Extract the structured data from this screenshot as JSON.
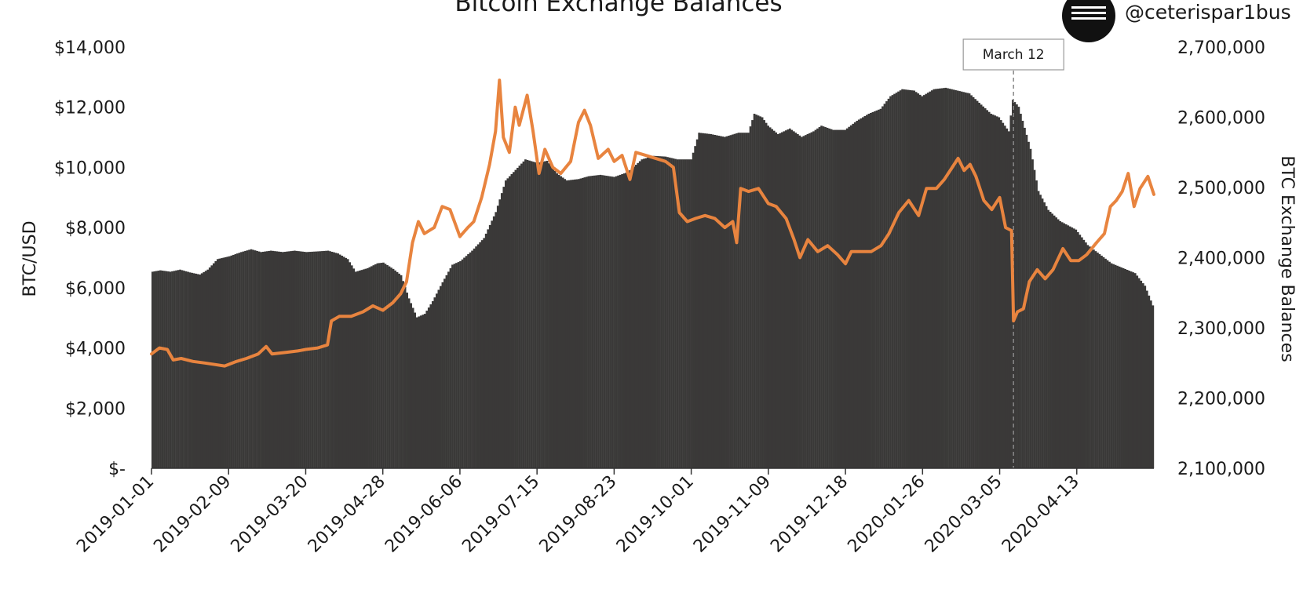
{
  "colors": {
    "bars": "#3a3938",
    "price_line": "#e8843f",
    "marker_line": "#888888",
    "logo": "#111111"
  },
  "header": {
    "title": "Bitcoin Exchange Balances",
    "handle": "@ceterispar1bus",
    "logo_icon": "menu-icon"
  },
  "chart_data": {
    "type": "bar",
    "title": "Bitcoin Exchange Balances",
    "grid": false,
    "legend": "none",
    "x_tick_labels": [
      "2019-01-01",
      "2019-02-09",
      "2019-03-20",
      "2019-04-28",
      "2019-06-06",
      "2019-07-15",
      "2019-08-23",
      "2019-10-01",
      "2019-11-09",
      "2019-12-18",
      "2020-01-26",
      "2020-03-05",
      "2020-04-13"
    ],
    "y_left": {
      "label": "BTC/USD",
      "range": [
        0,
        14000
      ],
      "tick_values": [
        0,
        2000,
        4000,
        6000,
        8000,
        10000,
        12000,
        14000
      ],
      "tick_labels": [
        "$-",
        "$2,000",
        "$4,000",
        "$6,000",
        "$8,000",
        "$10,000",
        "$12,000",
        "$14,000"
      ]
    },
    "y_right": {
      "label": "BTC Exchange Balances",
      "range": [
        2100000,
        2700000
      ],
      "tick_values": [
        2100000,
        2200000,
        2300000,
        2400000,
        2500000,
        2600000,
        2700000
      ],
      "tick_labels": [
        "2,100,000",
        "2,200,000",
        "2,300,000",
        "2,400,000",
        "2,500,000",
        "2,600,000",
        "2,700,000"
      ]
    },
    "x_range": [
      "2019-01-01",
      "2020-05-22"
    ],
    "series": [
      {
        "type": "bar",
        "axis": "right",
        "points": [
          [
            "2019-01-01",
            2380000
          ],
          [
            "2019-01-05",
            2382000
          ],
          [
            "2019-01-10",
            2380000
          ],
          [
            "2019-01-15",
            2383000
          ],
          [
            "2019-01-20",
            2379000
          ],
          [
            "2019-01-25",
            2376000
          ],
          [
            "2019-01-29",
            2383000
          ],
          [
            "2019-02-03",
            2398000
          ],
          [
            "2019-02-09",
            2402000
          ],
          [
            "2019-02-15",
            2408000
          ],
          [
            "2019-02-20",
            2412000
          ],
          [
            "2019-02-25",
            2408000
          ],
          [
            "2019-03-02",
            2410000
          ],
          [
            "2019-03-08",
            2408000
          ],
          [
            "2019-03-14",
            2410000
          ],
          [
            "2019-03-20",
            2408000
          ],
          [
            "2019-03-26",
            2409000
          ],
          [
            "2019-03-31",
            2410000
          ],
          [
            "2019-04-05",
            2406000
          ],
          [
            "2019-04-10",
            2398000
          ],
          [
            "2019-04-14",
            2380000
          ],
          [
            "2019-04-20",
            2385000
          ],
          [
            "2019-04-25",
            2392000
          ],
          [
            "2019-04-28",
            2393000
          ],
          [
            "2019-05-03",
            2384000
          ],
          [
            "2019-05-07",
            2375000
          ],
          [
            "2019-05-11",
            2342000
          ],
          [
            "2019-05-15",
            2315000
          ],
          [
            "2019-05-19",
            2320000
          ],
          [
            "2019-05-23",
            2338000
          ],
          [
            "2019-05-28",
            2365000
          ],
          [
            "2019-06-02",
            2390000
          ],
          [
            "2019-06-06",
            2395000
          ],
          [
            "2019-06-12",
            2410000
          ],
          [
            "2019-06-18",
            2428000
          ],
          [
            "2019-06-24",
            2465000
          ],
          [
            "2019-06-29",
            2510000
          ],
          [
            "2019-07-04",
            2525000
          ],
          [
            "2019-07-09",
            2540000
          ],
          [
            "2019-07-15",
            2535000
          ],
          [
            "2019-07-20",
            2538000
          ],
          [
            "2019-07-25",
            2520000
          ],
          [
            "2019-07-30",
            2510000
          ],
          [
            "2019-08-05",
            2512000
          ],
          [
            "2019-08-10",
            2516000
          ],
          [
            "2019-08-16",
            2518000
          ],
          [
            "2019-08-23",
            2515000
          ],
          [
            "2019-08-30",
            2522000
          ],
          [
            "2019-09-06",
            2540000
          ],
          [
            "2019-09-12",
            2545000
          ],
          [
            "2019-09-18",
            2544000
          ],
          [
            "2019-09-24",
            2540000
          ],
          [
            "2019-10-01",
            2540000
          ],
          [
            "2019-10-05",
            2578000
          ],
          [
            "2019-10-11",
            2576000
          ],
          [
            "2019-10-18",
            2572000
          ],
          [
            "2019-10-25",
            2578000
          ],
          [
            "2019-10-30",
            2578000
          ],
          [
            "2019-11-02",
            2605000
          ],
          [
            "2019-11-06",
            2600000
          ],
          [
            "2019-11-09",
            2588000
          ],
          [
            "2019-11-14",
            2576000
          ],
          [
            "2019-11-20",
            2584000
          ],
          [
            "2019-11-26",
            2572000
          ],
          [
            "2019-12-02",
            2580000
          ],
          [
            "2019-12-06",
            2588000
          ],
          [
            "2019-12-12",
            2582000
          ],
          [
            "2019-12-18",
            2582000
          ],
          [
            "2019-12-24",
            2595000
          ],
          [
            "2019-12-30",
            2605000
          ],
          [
            "2020-01-05",
            2612000
          ],
          [
            "2020-01-10",
            2630000
          ],
          [
            "2020-01-16",
            2640000
          ],
          [
            "2020-01-22",
            2638000
          ],
          [
            "2020-01-26",
            2630000
          ],
          [
            "2020-02-01",
            2640000
          ],
          [
            "2020-02-07",
            2642000
          ],
          [
            "2020-02-13",
            2638000
          ],
          [
            "2020-02-19",
            2634000
          ],
          [
            "2020-02-25",
            2618000
          ],
          [
            "2020-03-01",
            2605000
          ],
          [
            "2020-03-05",
            2600000
          ],
          [
            "2020-03-10",
            2580000
          ],
          [
            "2020-03-12",
            2625000
          ],
          [
            "2020-03-15",
            2615000
          ],
          [
            "2020-03-18",
            2585000
          ],
          [
            "2020-03-21",
            2555000
          ],
          [
            "2020-03-25",
            2495000
          ],
          [
            "2020-03-30",
            2468000
          ],
          [
            "2020-04-05",
            2452000
          ],
          [
            "2020-04-13",
            2440000
          ],
          [
            "2020-04-19",
            2418000
          ],
          [
            "2020-04-25",
            2405000
          ],
          [
            "2020-05-01",
            2392000
          ],
          [
            "2020-05-07",
            2385000
          ],
          [
            "2020-05-13",
            2378000
          ],
          [
            "2020-05-18",
            2360000
          ],
          [
            "2020-05-22",
            2332000
          ]
        ]
      },
      {
        "type": "line",
        "axis": "left",
        "points": [
          [
            "2019-01-01",
            3800
          ],
          [
            "2019-01-05",
            4000
          ],
          [
            "2019-01-09",
            3950
          ],
          [
            "2019-01-12",
            3600
          ],
          [
            "2019-01-16",
            3650
          ],
          [
            "2019-01-22",
            3550
          ],
          [
            "2019-01-28",
            3500
          ],
          [
            "2019-02-02",
            3450
          ],
          [
            "2019-02-07",
            3400
          ],
          [
            "2019-02-13",
            3550
          ],
          [
            "2019-02-18",
            3650
          ],
          [
            "2019-02-24",
            3800
          ],
          [
            "2019-02-28",
            4050
          ],
          [
            "2019-03-03",
            3800
          ],
          [
            "2019-03-10",
            3850
          ],
          [
            "2019-03-16",
            3900
          ],
          [
            "2019-03-20",
            3950
          ],
          [
            "2019-03-26",
            4000
          ],
          [
            "2019-03-31",
            4100
          ],
          [
            "2019-04-02",
            4900
          ],
          [
            "2019-04-06",
            5050
          ],
          [
            "2019-04-12",
            5050
          ],
          [
            "2019-04-18",
            5200
          ],
          [
            "2019-04-23",
            5400
          ],
          [
            "2019-04-28",
            5250
          ],
          [
            "2019-05-03",
            5500
          ],
          [
            "2019-05-07",
            5800
          ],
          [
            "2019-05-10",
            6200
          ],
          [
            "2019-05-13",
            7500
          ],
          [
            "2019-05-16",
            8200
          ],
          [
            "2019-05-19",
            7800
          ],
          [
            "2019-05-24",
            8000
          ],
          [
            "2019-05-28",
            8700
          ],
          [
            "2019-06-01",
            8600
          ],
          [
            "2019-06-06",
            7700
          ],
          [
            "2019-06-10",
            8000
          ],
          [
            "2019-06-13",
            8200
          ],
          [
            "2019-06-17",
            9000
          ],
          [
            "2019-06-21",
            10100
          ],
          [
            "2019-06-24",
            11200
          ],
          [
            "2019-06-26",
            12900
          ],
          [
            "2019-06-28",
            11000
          ],
          [
            "2019-07-01",
            10500
          ],
          [
            "2019-07-04",
            12000
          ],
          [
            "2019-07-06",
            11400
          ],
          [
            "2019-07-10",
            12400
          ],
          [
            "2019-07-13",
            11200
          ],
          [
            "2019-07-16",
            9800
          ],
          [
            "2019-07-19",
            10600
          ],
          [
            "2019-07-23",
            10000
          ],
          [
            "2019-07-27",
            9800
          ],
          [
            "2019-08-01",
            10200
          ],
          [
            "2019-08-05",
            11500
          ],
          [
            "2019-08-08",
            11900
          ],
          [
            "2019-08-11",
            11400
          ],
          [
            "2019-08-15",
            10300
          ],
          [
            "2019-08-20",
            10600
          ],
          [
            "2019-08-23",
            10200
          ],
          [
            "2019-08-27",
            10400
          ],
          [
            "2019-08-31",
            9600
          ],
          [
            "2019-09-03",
            10500
          ],
          [
            "2019-09-08",
            10400
          ],
          [
            "2019-09-13",
            10300
          ],
          [
            "2019-09-18",
            10200
          ],
          [
            "2019-09-22",
            10000
          ],
          [
            "2019-09-25",
            8500
          ],
          [
            "2019-09-29",
            8200
          ],
          [
            "2019-10-03",
            8300
          ],
          [
            "2019-10-08",
            8400
          ],
          [
            "2019-10-13",
            8300
          ],
          [
            "2019-10-18",
            8000
          ],
          [
            "2019-10-22",
            8200
          ],
          [
            "2019-10-24",
            7500
          ],
          [
            "2019-10-26",
            9300
          ],
          [
            "2019-10-30",
            9200
          ],
          [
            "2019-11-04",
            9300
          ],
          [
            "2019-11-09",
            8800
          ],
          [
            "2019-11-13",
            8700
          ],
          [
            "2019-11-18",
            8300
          ],
          [
            "2019-11-22",
            7600
          ],
          [
            "2019-11-25",
            7000
          ],
          [
            "2019-11-29",
            7600
          ],
          [
            "2019-12-04",
            7200
          ],
          [
            "2019-12-09",
            7400
          ],
          [
            "2019-12-14",
            7100
          ],
          [
            "2019-12-18",
            6800
          ],
          [
            "2019-12-21",
            7200
          ],
          [
            "2019-12-26",
            7200
          ],
          [
            "2019-12-31",
            7200
          ],
          [
            "2020-01-05",
            7400
          ],
          [
            "2020-01-09",
            7800
          ],
          [
            "2020-01-14",
            8500
          ],
          [
            "2020-01-19",
            8900
          ],
          [
            "2020-01-24",
            8400
          ],
          [
            "2020-01-28",
            9300
          ],
          [
            "2020-02-02",
            9300
          ],
          [
            "2020-02-06",
            9600
          ],
          [
            "2020-02-10",
            10000
          ],
          [
            "2020-02-13",
            10300
          ],
          [
            "2020-02-16",
            9900
          ],
          [
            "2020-02-19",
            10100
          ],
          [
            "2020-02-22",
            9700
          ],
          [
            "2020-02-26",
            8900
          ],
          [
            "2020-03-01",
            8600
          ],
          [
            "2020-03-05",
            9000
          ],
          [
            "2020-03-08",
            8000
          ],
          [
            "2020-03-11",
            7900
          ],
          [
            "2020-03-12",
            4900
          ],
          [
            "2020-03-14",
            5200
          ],
          [
            "2020-03-17",
            5300
          ],
          [
            "2020-03-20",
            6200
          ],
          [
            "2020-03-24",
            6600
          ],
          [
            "2020-03-28",
            6300
          ],
          [
            "2020-04-01",
            6600
          ],
          [
            "2020-04-06",
            7300
          ],
          [
            "2020-04-10",
            6900
          ],
          [
            "2020-04-14",
            6900
          ],
          [
            "2020-04-18",
            7100
          ],
          [
            "2020-04-23",
            7500
          ],
          [
            "2020-04-27",
            7800
          ],
          [
            "2020-04-30",
            8700
          ],
          [
            "2020-05-03",
            8900
          ],
          [
            "2020-05-06",
            9200
          ],
          [
            "2020-05-09",
            9800
          ],
          [
            "2020-05-12",
            8700
          ],
          [
            "2020-05-15",
            9300
          ],
          [
            "2020-05-19",
            9700
          ],
          [
            "2020-05-22",
            9100
          ]
        ]
      }
    ],
    "annotations": [
      {
        "label": "March 12",
        "date": "2020-03-12",
        "style": "dashed-vertical-line"
      }
    ]
  }
}
